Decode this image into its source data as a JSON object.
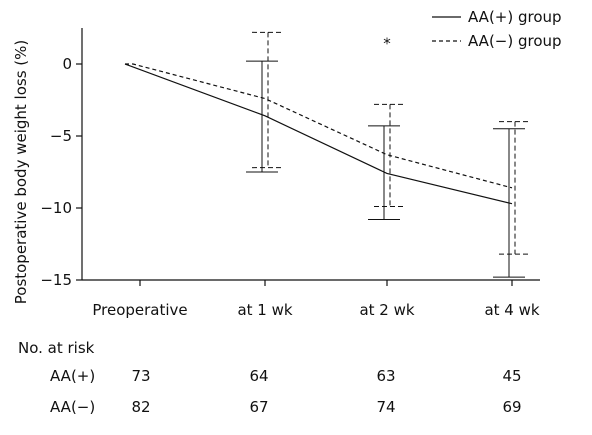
{
  "chart_data": {
    "type": "line",
    "title": "",
    "xlabel": "",
    "ylabel": "Postoperative body weight loss (%)",
    "categories": [
      "Preoperative",
      "at 1 wk",
      "at 2 wk",
      "at 4 wk"
    ],
    "ylim": [
      -15,
      2.5
    ],
    "yticks": [
      0,
      -5,
      -10,
      -15
    ],
    "grid": false,
    "legend_position": "top-right",
    "series": [
      {
        "name": "AA(+) group",
        "style": "solid",
        "values": [
          0,
          -3.6,
          -7.6,
          -9.7
        ],
        "err_low": [
          0,
          -7.5,
          -10.8,
          -14.8
        ],
        "err_high": [
          0,
          0.2,
          -4.3,
          -4.5
        ]
      },
      {
        "name": "AA(−) group",
        "style": "dashed",
        "values": [
          0,
          -2.4,
          -6.3,
          -8.6
        ],
        "err_low": [
          0,
          -7.2,
          -9.9,
          -13.2
        ],
        "err_high": [
          0,
          2.2,
          -2.8,
          -4.0
        ]
      }
    ],
    "annotations": [
      {
        "text": "*",
        "category": "at 2 wk",
        "y": 1.9
      }
    ]
  },
  "risk_table": {
    "header": "No. at risk",
    "rows": [
      {
        "label": "AA(+)",
        "values": [
          "73",
          "64",
          "63",
          "45"
        ]
      },
      {
        "label": "AA(−)",
        "values": [
          "82",
          "67",
          "74",
          "69"
        ]
      }
    ]
  }
}
